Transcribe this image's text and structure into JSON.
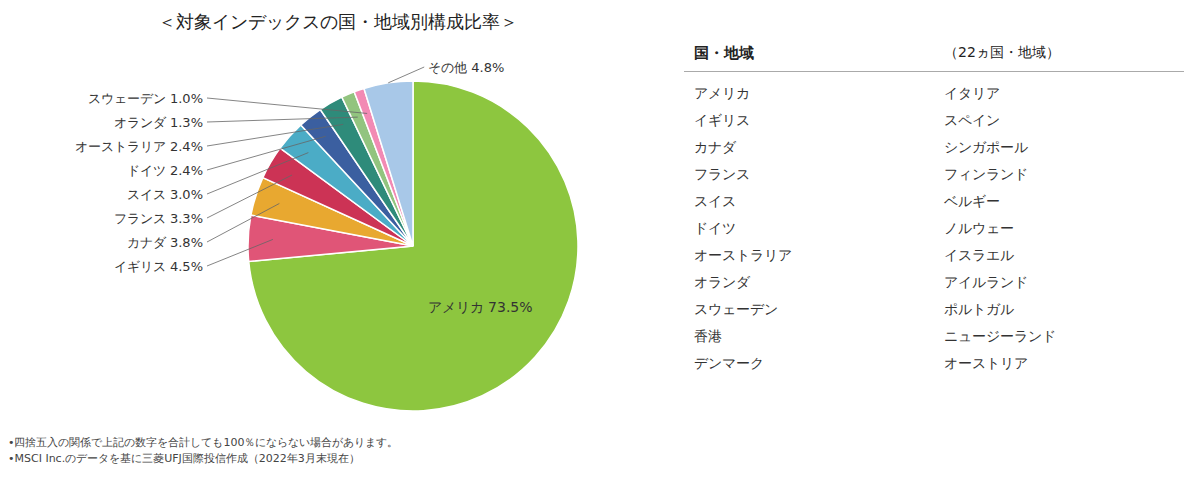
{
  "chart_data": {
    "type": "pie",
    "title": "＜対象インデックスの国・地域別構成比率＞",
    "categories": [
      "アメリカ",
      "イギリス",
      "カナダ",
      "フランス",
      "スイス",
      "ドイツ",
      "オーストラリア",
      "オランダ",
      "スウェーデン",
      "その他"
    ],
    "values": [
      73.5,
      4.5,
      3.8,
      3.3,
      3.0,
      2.4,
      2.4,
      1.3,
      1.0,
      4.8
    ],
    "colors": [
      "#8dc63f",
      "#e05577",
      "#e8a830",
      "#cc3355",
      "#4bacc6",
      "#3b5fa0",
      "#2e8b7a",
      "#92c47f",
      "#f28ab4",
      "#a8c8e8"
    ],
    "data_labels": true,
    "value_labels": [
      "アメリカ 73.5%",
      "イギリス 4.5%",
      "カナダ 3.8%",
      "フランス 3.3%",
      "スイス 3.0%",
      "ドイツ 2.4%",
      "オーストラリア 2.4%",
      "オランダ 1.3%",
      "スウェーデン 1.0%",
      "その他 4.8%"
    ],
    "table": {
      "headers": [
        "国・地域",
        "（22ヵ国・地域）"
      ],
      "columns": [
        [
          "アメリカ",
          "イギリス",
          "カナダ",
          "フランス",
          "スイス",
          "ドイツ",
          "オーストラリア",
          "オランダ",
          "スウェーデン",
          "香港",
          "デンマーク"
        ],
        [
          "イタリア",
          "スペイン",
          "シンガポール",
          "フィンランド",
          "ベルギー",
          "ノルウェー",
          "イスラエル",
          "アイルランド",
          "ポルトガル",
          "ニュージーランド",
          "オーストリア"
        ]
      ]
    },
    "footnotes": [
      "•四捨五入の関係で上記の数字を合計しても100％にならない場合があります。",
      "•MSCI Inc.のデータを基に三菱UFJ国際投信作成（2022年3月末現在）"
    ]
  }
}
